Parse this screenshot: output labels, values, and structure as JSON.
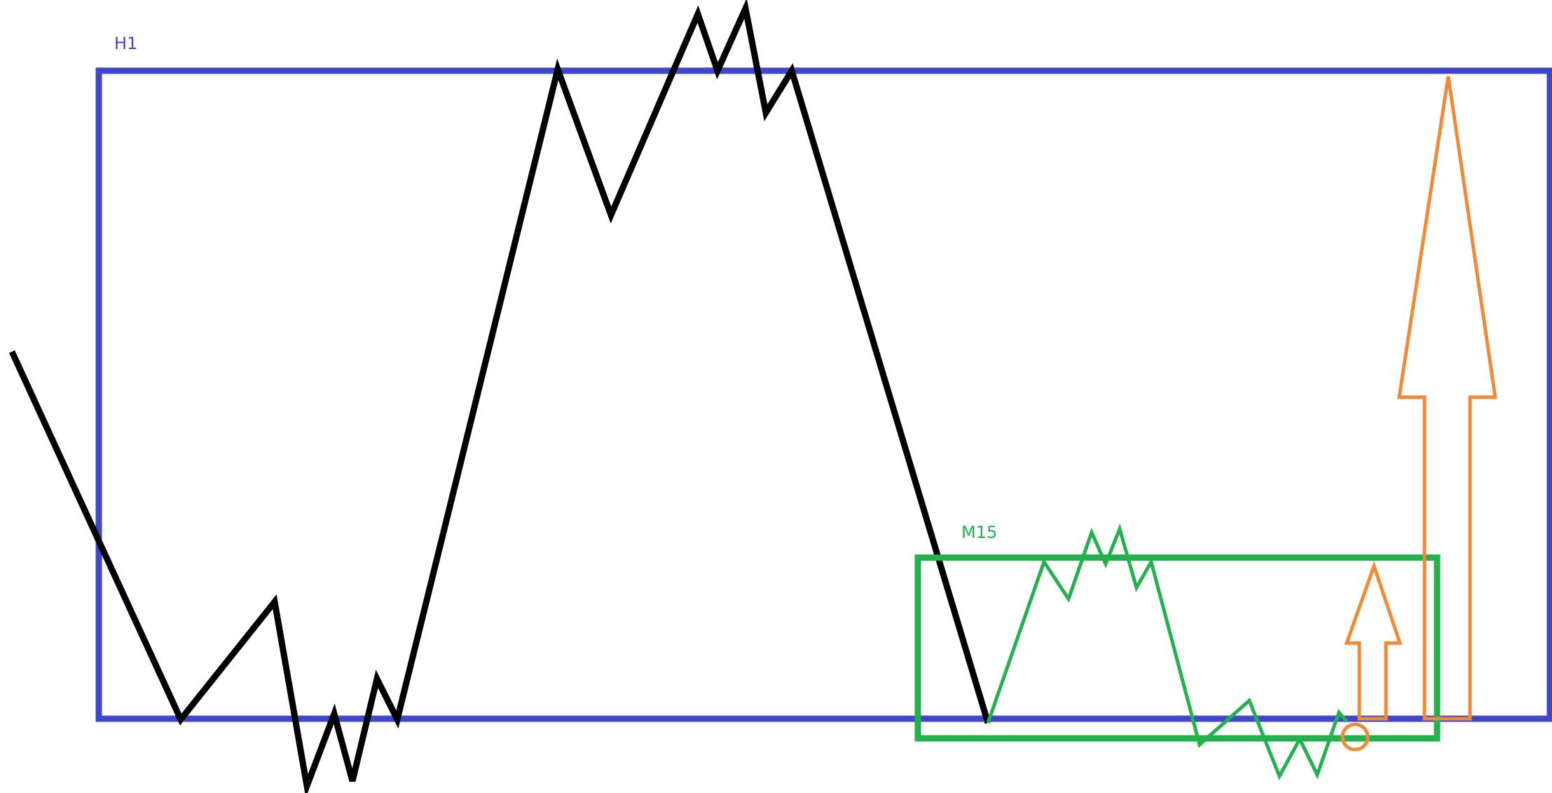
{
  "labels": {
    "h1": "H1",
    "m15": "M15"
  },
  "colors": {
    "background": "#ffffff",
    "h1_box": "#3f48cc",
    "m15_box": "#22b14c",
    "h1_price": "#000000",
    "m15_price": "#22b14c",
    "target": "#f08a36"
  },
  "diagram": {
    "boxes": [
      {
        "name": "h1-range-box",
        "label_key": "h1",
        "timeframe": "H1"
      },
      {
        "name": "m15-range-box",
        "label_key": "m15",
        "timeframe": "M15"
      }
    ],
    "paths": [
      {
        "name": "h1-price-path",
        "timeframe": "H1"
      },
      {
        "name": "m15-price-path",
        "timeframe": "M15"
      }
    ],
    "arrows": [
      {
        "name": "m15-target-arrow",
        "direction": "up"
      },
      {
        "name": "h1-target-arrow",
        "direction": "up"
      }
    ],
    "markers": [
      {
        "name": "entry-circle",
        "shape": "circle"
      }
    ]
  }
}
